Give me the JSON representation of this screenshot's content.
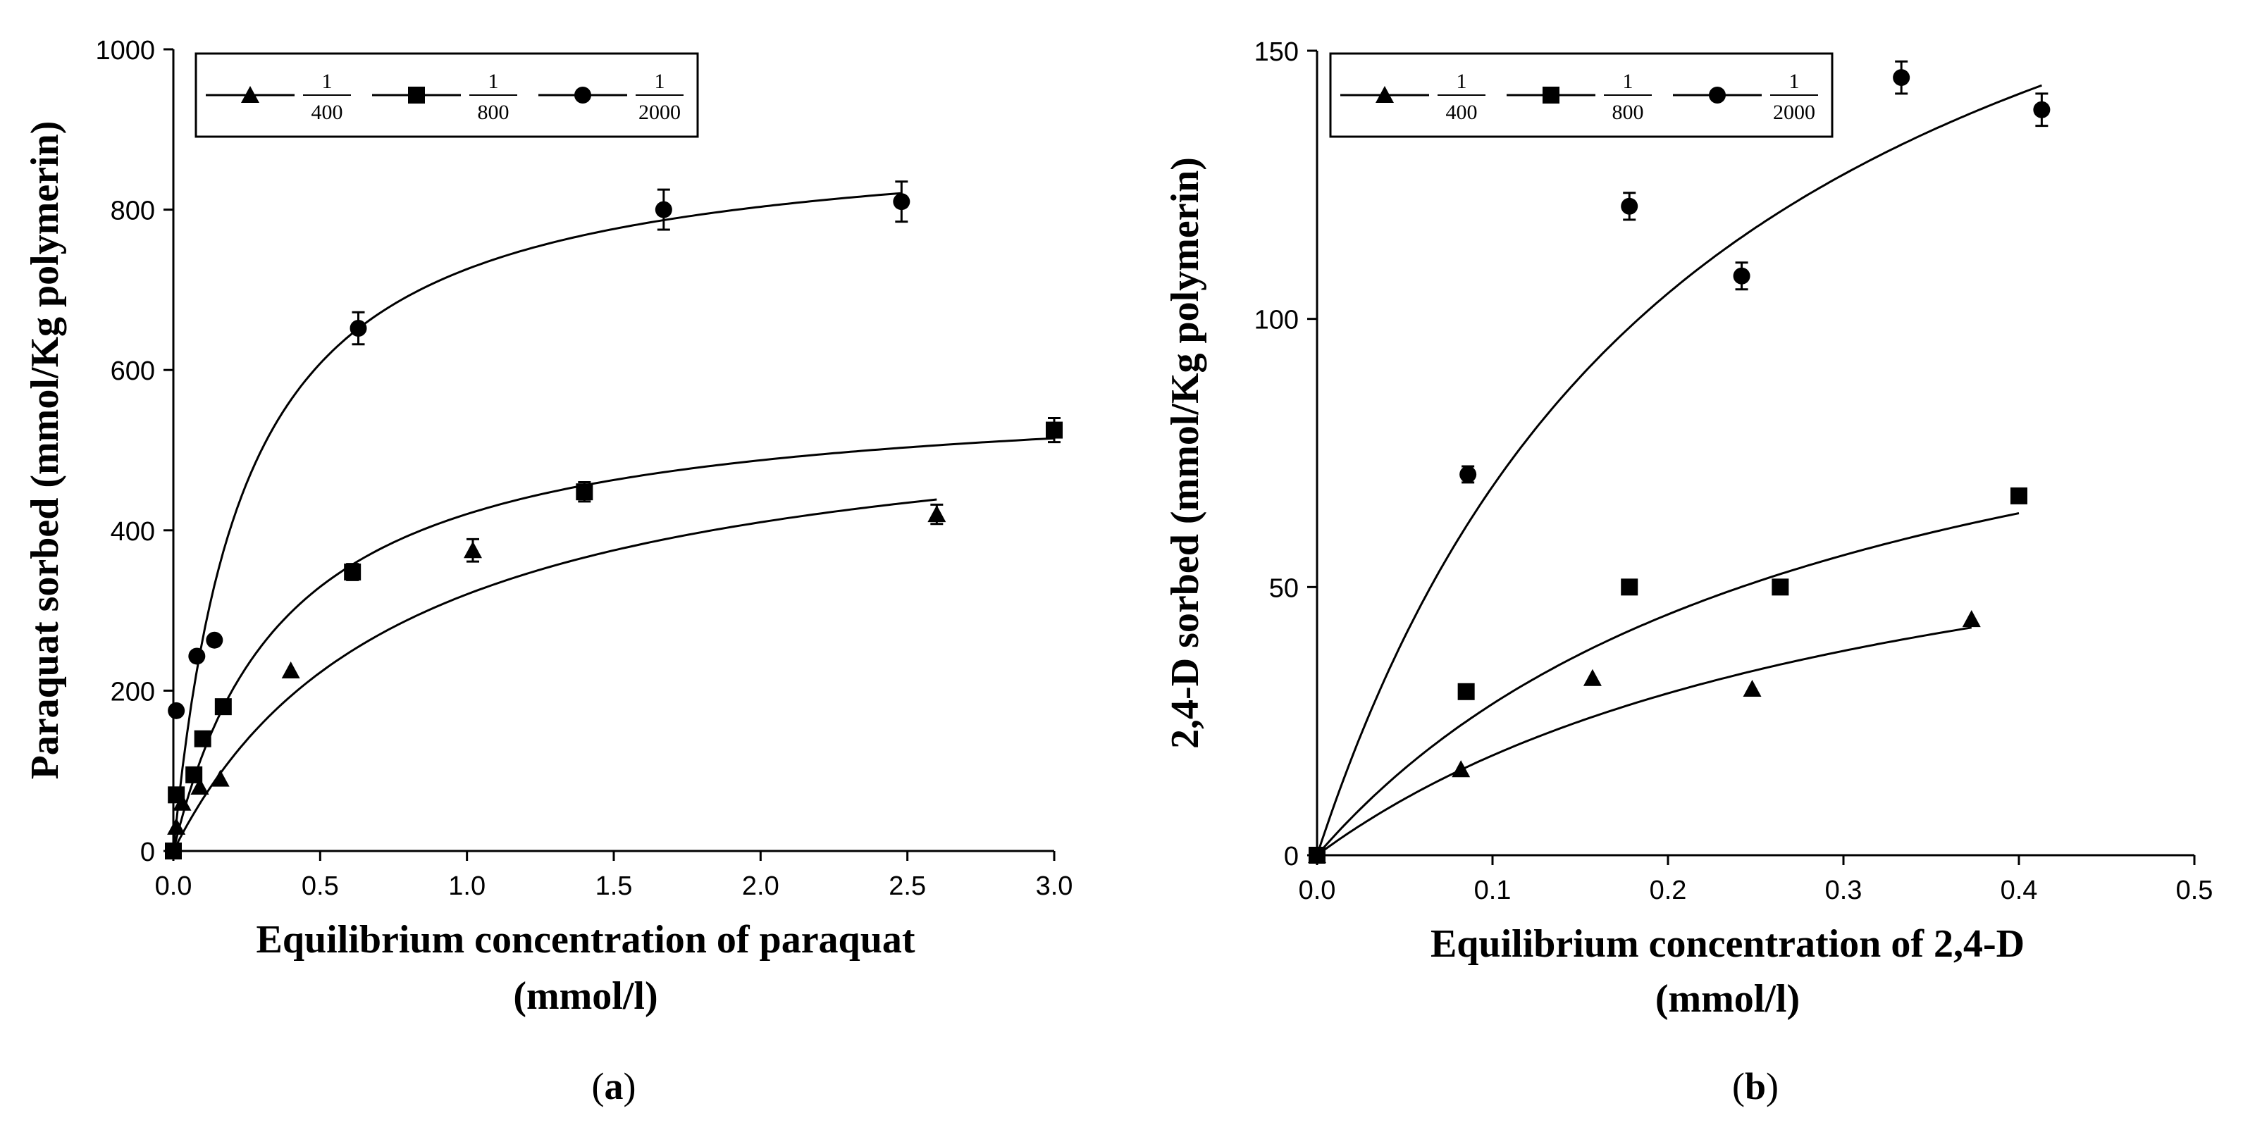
{
  "chart_data": [
    {
      "panel": "a",
      "type": "scatter",
      "caption_letter": "a",
      "ylabel": "Paraquat sorbed (mmol/Kg polymerin)",
      "xlabel_line1": "Equilibrium concentration of paraquat",
      "xlabel_line2": "(mmol/l)",
      "xlim": [
        0,
        3.0
      ],
      "ylim": [
        0,
        1000
      ],
      "xticks": [
        "0.0",
        "0.5",
        "1.0",
        "1.5",
        "2.0",
        "2.5",
        "3.0"
      ],
      "xtick_values": [
        0,
        0.5,
        1.0,
        1.5,
        2.0,
        2.5,
        3.0
      ],
      "yticks": [
        "0",
        "200",
        "400",
        "600",
        "800",
        "1000"
      ],
      "ytick_values": [
        0,
        200,
        400,
        600,
        800,
        1000
      ],
      "legend": [
        {
          "num": "1",
          "den": "400",
          "marker": "triangle"
        },
        {
          "num": "1",
          "den": "800",
          "marker": "square"
        },
        {
          "num": "1",
          "den": "2000",
          "marker": "circle"
        }
      ],
      "series": [
        {
          "name": "1/400",
          "marker": "triangle",
          "x": [
            0.01,
            0.03,
            0.09,
            0.16,
            0.4,
            1.02,
            2.6
          ],
          "y": [
            30,
            60,
            80,
            90,
            225,
            375,
            420
          ],
          "err": [
            0,
            0,
            0,
            0,
            0,
            14,
            12
          ],
          "fit": {
            "qmax": 570,
            "k": 0.78,
            "xmax": 2.6
          }
        },
        {
          "name": "1/800",
          "marker": "square",
          "x": [
            0.0,
            0.01,
            0.07,
            0.1,
            0.17,
            0.61,
            1.4,
            3.0
          ],
          "y": [
            0,
            70,
            95,
            140,
            180,
            348,
            448,
            525
          ],
          "err": [
            0,
            0,
            0,
            0,
            0,
            10,
            12,
            15
          ],
          "fit": {
            "qmax": 580,
            "k": 0.38,
            "xmax": 3.0
          }
        },
        {
          "name": "1/2000",
          "marker": "circle",
          "x": [
            0.01,
            0.08,
            0.14,
            0.63,
            1.67,
            2.48
          ],
          "y": [
            175,
            243,
            263,
            652,
            800,
            810
          ],
          "err": [
            0,
            0,
            0,
            20,
            25,
            25
          ],
          "fit": {
            "qmax": 900,
            "k": 0.24,
            "xmax": 2.48
          }
        }
      ]
    },
    {
      "panel": "b",
      "type": "scatter",
      "caption_letter": "b",
      "ylabel": "2,4-D sorbed (mmol/Kg polymerin)",
      "xlabel_line1": "Equilibrium concentration of 2,4-D",
      "xlabel_line2": "(mmol/l)",
      "xlim": [
        0,
        0.5
      ],
      "ylim": [
        0,
        150
      ],
      "xticks": [
        "0.0",
        "0.1",
        "0.2",
        "0.3",
        "0.4",
        "0.5"
      ],
      "xtick_values": [
        0,
        0.1,
        0.2,
        0.3,
        0.4,
        0.5
      ],
      "yticks": [
        "0",
        "50",
        "100",
        "150"
      ],
      "ytick_values": [
        0,
        50,
        100,
        150
      ],
      "legend": [
        {
          "num": "1",
          "den": "400",
          "marker": "triangle"
        },
        {
          "num": "1",
          "den": "800",
          "marker": "square"
        },
        {
          "num": "1",
          "den": "2000",
          "marker": "circle"
        }
      ],
      "series": [
        {
          "name": "1/400",
          "marker": "triangle",
          "x": [
            0.0,
            0.082,
            0.157,
            0.248,
            0.373
          ],
          "y": [
            0,
            16,
            33,
            31,
            44
          ],
          "err": [
            0,
            0,
            0,
            0,
            0
          ],
          "fit": {
            "qmax": 80,
            "k": 0.33,
            "xmax": 0.373
          }
        },
        {
          "name": "1/800",
          "marker": "square",
          "x": [
            0.0,
            0.085,
            0.178,
            0.264,
            0.4
          ],
          "y": [
            0,
            30.5,
            50,
            50,
            67
          ],
          "err": [
            0,
            0,
            0,
            0,
            0
          ],
          "fit": {
            "qmax": 110,
            "k": 0.29,
            "xmax": 0.4
          }
        },
        {
          "name": "1/2000",
          "marker": "circle",
          "x": [
            0.0,
            0.086,
            0.178,
            0.242,
            0.333,
            0.413
          ],
          "y": [
            0,
            71,
            121,
            108,
            145,
            139
          ],
          "err": [
            0,
            1.5,
            2.5,
            2.5,
            3,
            3
          ],
          "fit": {
            "qmax": 220,
            "k": 0.22,
            "xmax": 0.413
          }
        }
      ]
    }
  ]
}
